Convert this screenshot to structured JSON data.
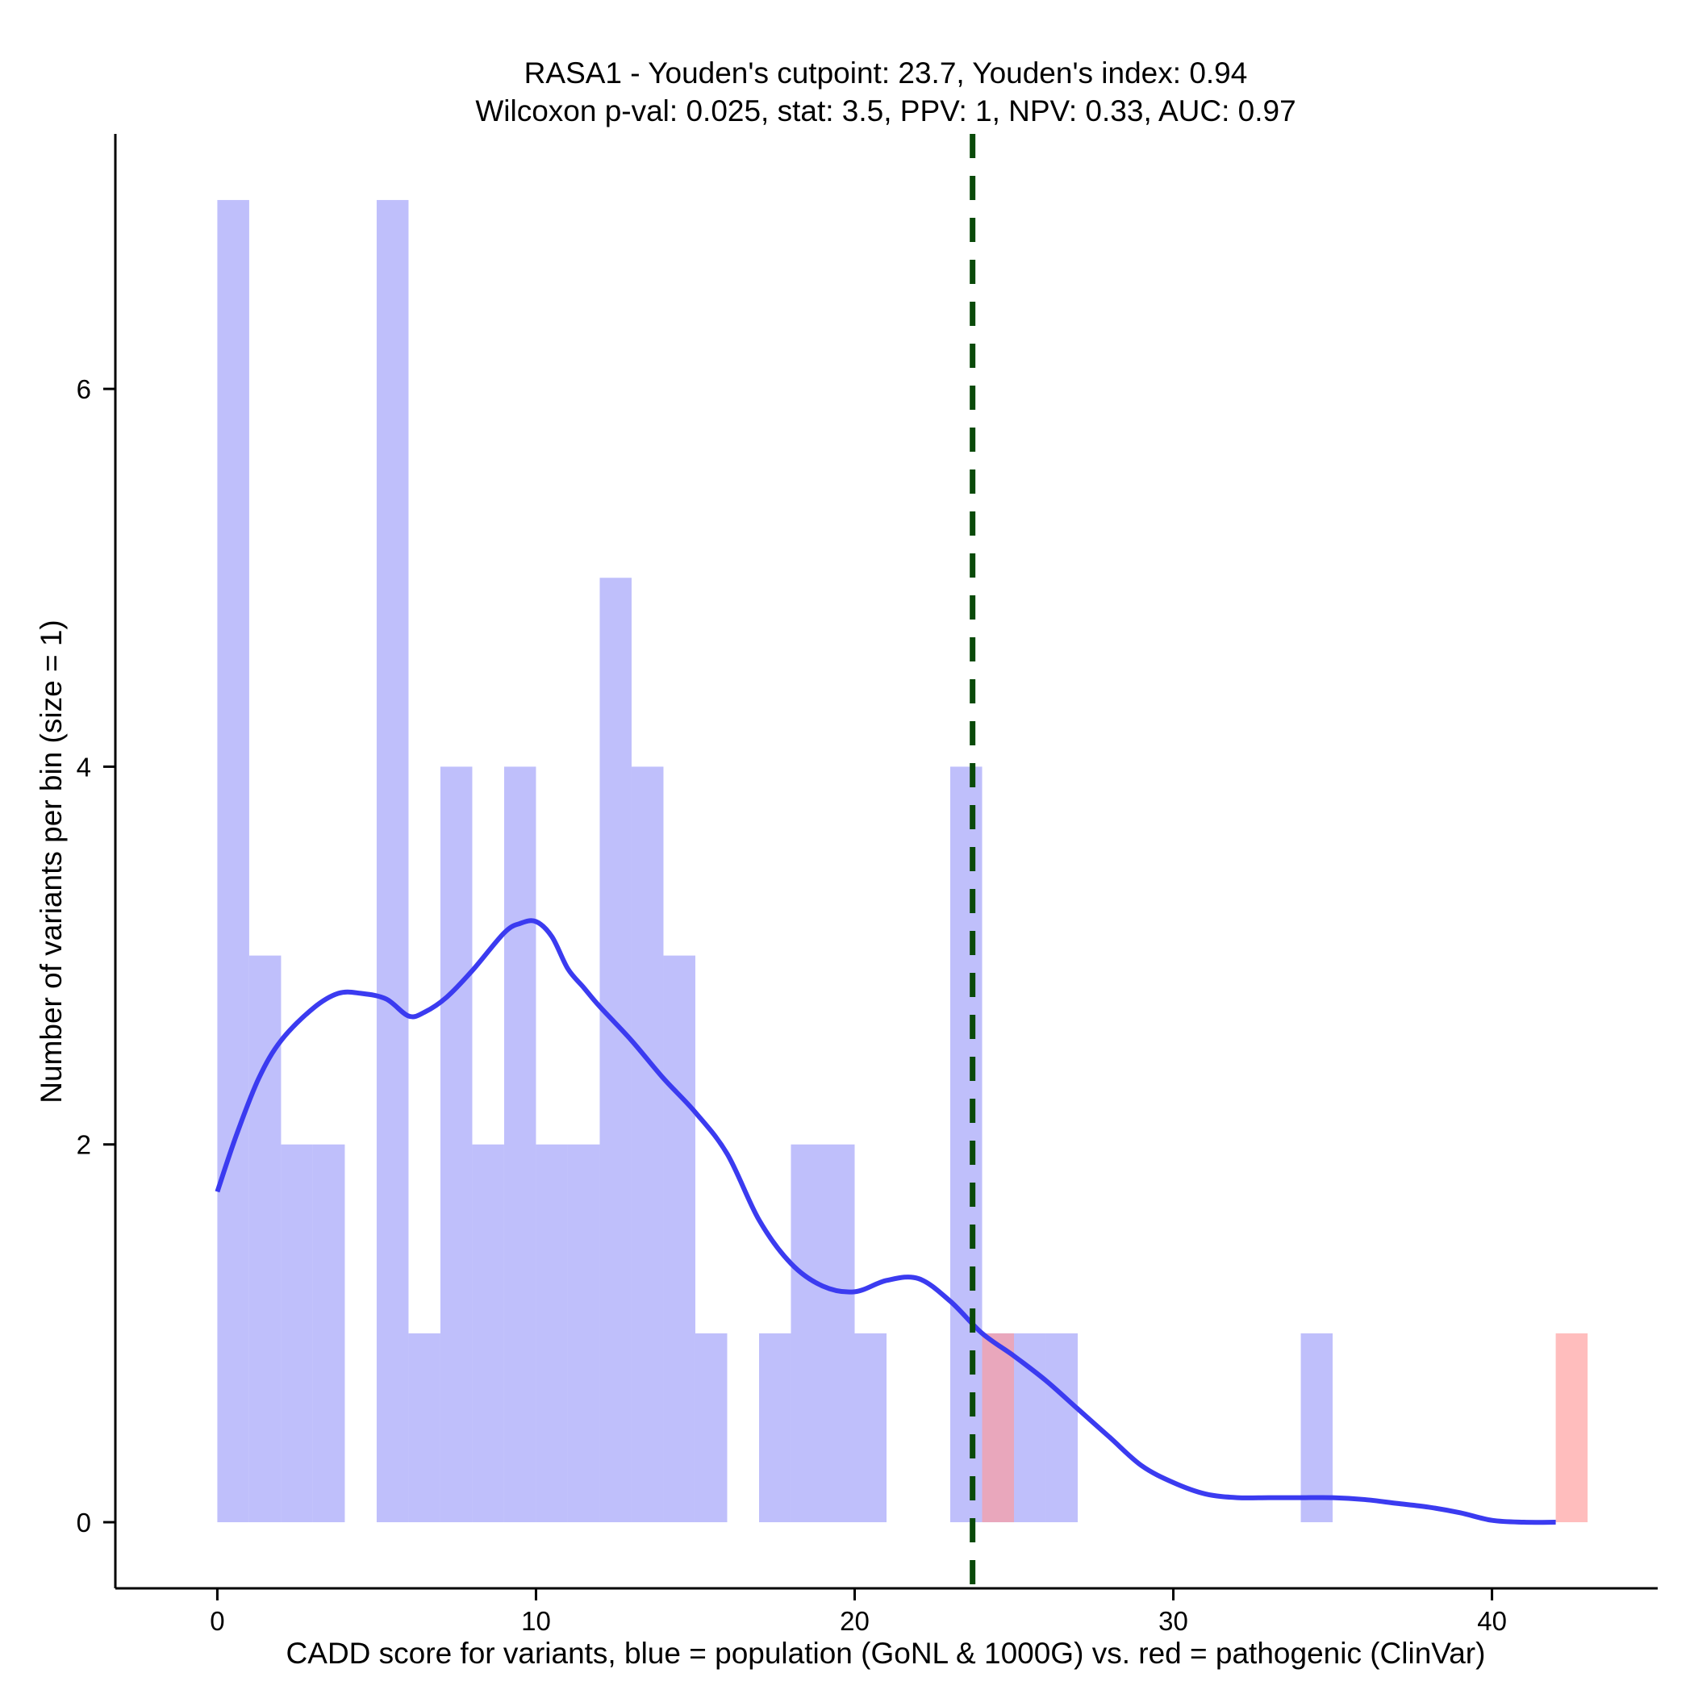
{
  "chart_data": {
    "type": "histogram",
    "title_line1": "RASA1 - Youden's cutpoint: 23.7, Youden's index: 0.94",
    "title_line2": "Wilcoxon p-val: 0.025, stat: 3.5, PPV: 1, NPV: 0.33, AUC: 0.97",
    "xlabel": "CADD score for variants, blue = population (GoNL & 1000G) vs. red = pathogenic (ClinVar)",
    "ylabel": "Number of variants per bin (size = 1)",
    "xlim": [
      -3.2,
      45.2
    ],
    "ylim": [
      -0.35,
      7.35
    ],
    "xticks": [
      0,
      10,
      20,
      30,
      40
    ],
    "yticks": [
      0,
      2,
      4,
      6
    ],
    "bin_width": 1,
    "cutpoint": 23.7,
    "colors": {
      "population": "#bfbffb",
      "pathogenic": "#ff9a9a",
      "density": "#3b3bf0",
      "cutpoint": "#0a4a0a"
    },
    "series": [
      {
        "name": "population (GoNL & 1000G)",
        "bins": [
          {
            "x": 0,
            "count": 7
          },
          {
            "x": 1,
            "count": 3
          },
          {
            "x": 2,
            "count": 2
          },
          {
            "x": 3,
            "count": 2
          },
          {
            "x": 5,
            "count": 7
          },
          {
            "x": 6,
            "count": 1
          },
          {
            "x": 7,
            "count": 4
          },
          {
            "x": 8,
            "count": 2
          },
          {
            "x": 9,
            "count": 4
          },
          {
            "x": 10,
            "count": 2
          },
          {
            "x": 11,
            "count": 2
          },
          {
            "x": 12,
            "count": 5
          },
          {
            "x": 13,
            "count": 4
          },
          {
            "x": 14,
            "count": 3
          },
          {
            "x": 15,
            "count": 1
          },
          {
            "x": 17,
            "count": 1
          },
          {
            "x": 18,
            "count": 2
          },
          {
            "x": 19,
            "count": 2
          },
          {
            "x": 20,
            "count": 1
          },
          {
            "x": 23,
            "count": 4
          },
          {
            "x": 24,
            "count": 1
          },
          {
            "x": 25,
            "count": 1
          },
          {
            "x": 26,
            "count": 1
          },
          {
            "x": 34,
            "count": 1
          }
        ]
      },
      {
        "name": "pathogenic (ClinVar)",
        "bins": [
          {
            "x": 24,
            "count": 1
          },
          {
            "x": 42,
            "count": 1
          }
        ]
      }
    ],
    "density_curve": {
      "x": [
        0,
        0.6,
        1.3,
        2,
        3,
        3.8,
        4.5,
        5.3,
        6,
        6.5,
        7.2,
        8,
        9,
        9.5,
        10,
        10.5,
        11,
        11.5,
        12,
        13,
        14,
        15,
        16,
        17,
        18,
        19,
        20,
        21,
        22,
        23,
        24,
        25,
        26,
        27,
        28,
        29,
        30,
        31,
        32,
        33,
        34,
        35,
        36,
        37,
        38,
        39,
        40,
        41,
        42
      ],
      "y": [
        1.75,
        2.05,
        2.35,
        2.55,
        2.72,
        2.8,
        2.8,
        2.77,
        2.68,
        2.7,
        2.78,
        2.92,
        3.12,
        3.17,
        3.18,
        3.1,
        2.93,
        2.83,
        2.73,
        2.55,
        2.35,
        2.17,
        1.95,
        1.6,
        1.37,
        1.25,
        1.22,
        1.28,
        1.29,
        1.17,
        1.0,
        0.88,
        0.75,
        0.6,
        0.45,
        0.3,
        0.21,
        0.15,
        0.13,
        0.13,
        0.13,
        0.13,
        0.12,
        0.1,
        0.08,
        0.05,
        0.01,
        0.0,
        0.0
      ]
    }
  }
}
